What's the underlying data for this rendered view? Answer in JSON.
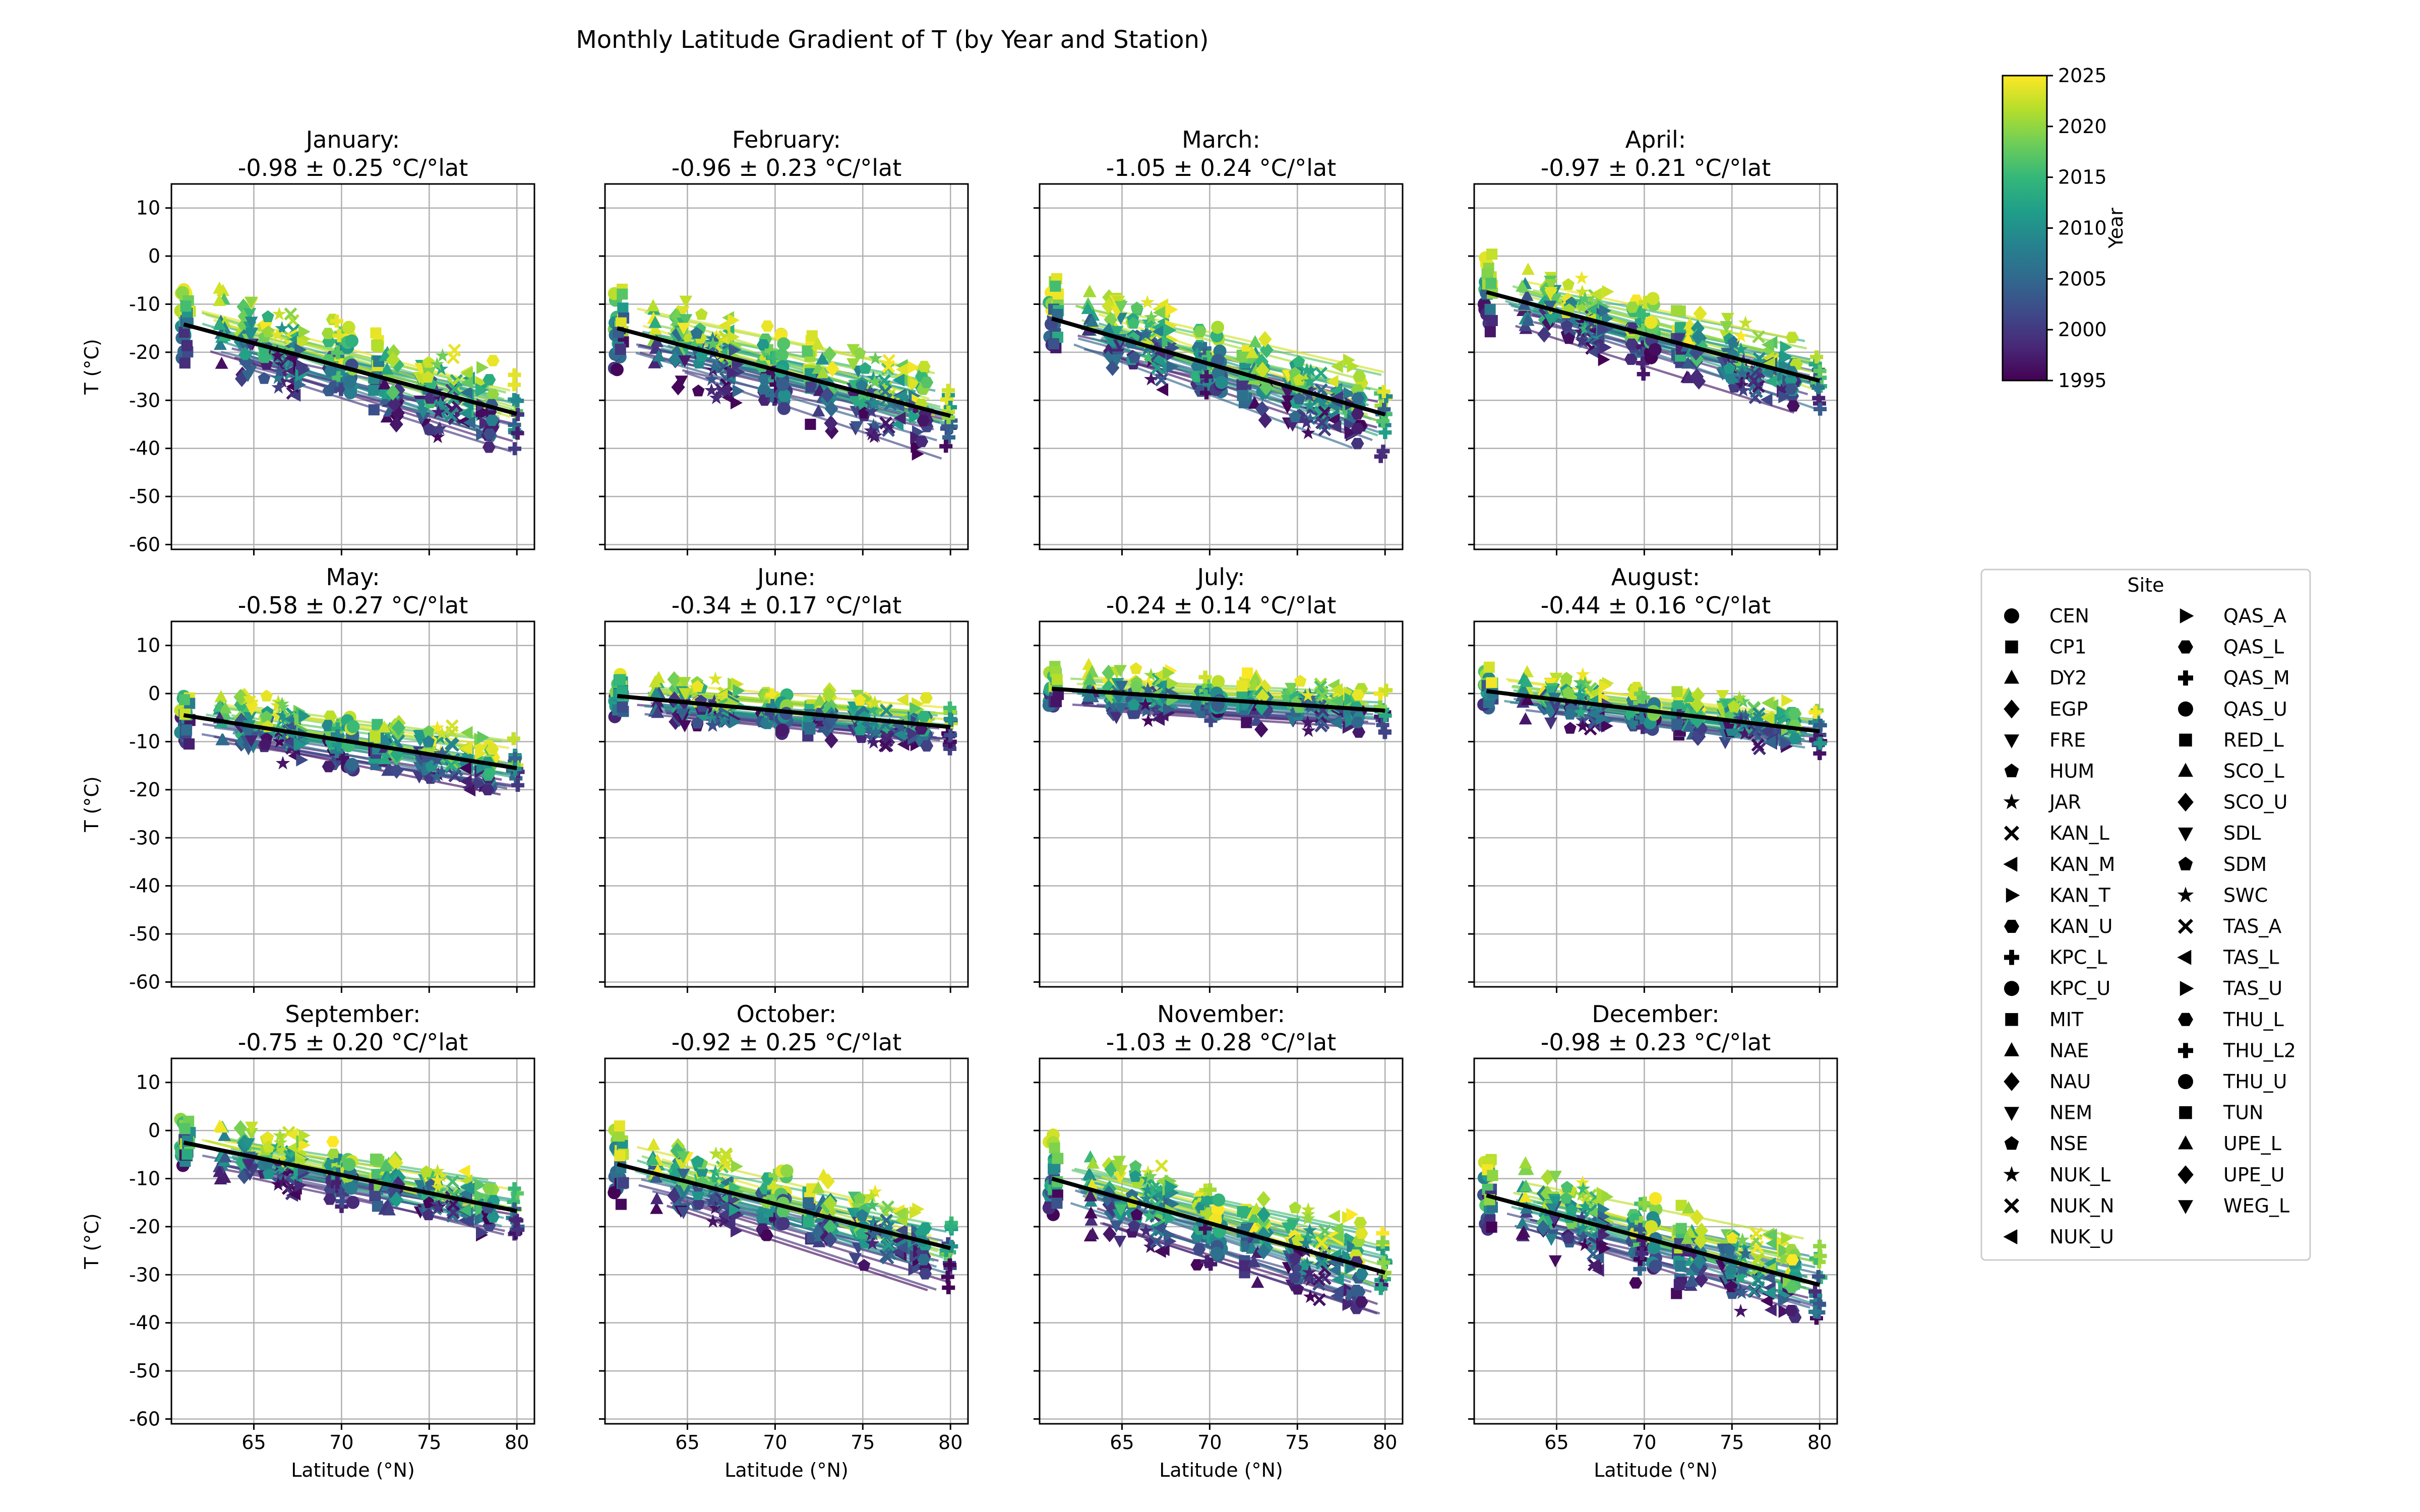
{
  "figure": {
    "title": "Monthly Latitude Gradient of T (by Year and Station)"
  },
  "axes_common": {
    "xlabel": "Latitude (°N)",
    "ylabel": "T (°C)",
    "xlim": [
      60.3,
      81.0
    ],
    "ylim": [
      -61,
      15
    ],
    "xticks": [
      65,
      70,
      75,
      80
    ],
    "yticks": [
      10,
      0,
      -10,
      -20,
      -30,
      -40,
      -50,
      -60
    ],
    "grid": true
  },
  "chart_data": [
    {
      "type": "scatter",
      "month": "January",
      "title": "January:",
      "gradient_label": "-0.98 ± 0.25 °C/°lat",
      "slope": -0.98,
      "slope_err": 0.25,
      "fit_at_61": -14.2,
      "spread": 7
    },
    {
      "type": "scatter",
      "month": "February",
      "title": "February:",
      "gradient_label": "-0.96 ± 0.23 °C/°lat",
      "slope": -0.96,
      "slope_err": 0.23,
      "fit_at_61": -15.0,
      "spread": 7
    },
    {
      "type": "scatter",
      "month": "March",
      "title": "March:",
      "gradient_label": "-1.05 ± 0.24 °C/°lat",
      "slope": -1.05,
      "slope_err": 0.24,
      "fit_at_61": -13.0,
      "spread": 7
    },
    {
      "type": "scatter",
      "month": "April",
      "title": "April:",
      "gradient_label": "-0.97 ± 0.21 °C/°lat",
      "slope": -0.97,
      "slope_err": 0.21,
      "fit_at_61": -7.5,
      "spread": 6
    },
    {
      "type": "scatter",
      "month": "May",
      "title": "May:",
      "gradient_label": "-0.58 ± 0.27 °C/°lat",
      "slope": -0.58,
      "slope_err": 0.27,
      "fit_at_61": -4.5,
      "spread": 5
    },
    {
      "type": "scatter",
      "month": "June",
      "title": "June:",
      "gradient_label": "-0.34 ± 0.17 °C/°lat",
      "slope": -0.34,
      "slope_err": 0.17,
      "fit_at_61": -0.5,
      "spread": 4
    },
    {
      "type": "scatter",
      "month": "July",
      "title": "July:",
      "gradient_label": "-0.24 ± 0.14 °C/°lat",
      "slope": -0.24,
      "slope_err": 0.14,
      "fit_at_61": 1.0,
      "spread": 4
    },
    {
      "type": "scatter",
      "month": "August",
      "title": "August:",
      "gradient_label": "-0.44 ± 0.16 °C/°lat",
      "slope": -0.44,
      "slope_err": 0.16,
      "fit_at_61": 0.5,
      "spread": 4
    },
    {
      "type": "scatter",
      "month": "September",
      "title": "September:",
      "gradient_label": "-0.75 ± 0.20 °C/°lat",
      "slope": -0.75,
      "slope_err": 0.2,
      "fit_at_61": -2.5,
      "spread": 5
    },
    {
      "type": "scatter",
      "month": "October",
      "title": "October:",
      "gradient_label": "-0.92 ± 0.25 °C/°lat",
      "slope": -0.92,
      "slope_err": 0.25,
      "fit_at_61": -7.0,
      "spread": 6
    },
    {
      "type": "scatter",
      "month": "November",
      "title": "November:",
      "gradient_label": "-1.03 ± 0.28 °C/°lat",
      "slope": -1.03,
      "slope_err": 0.28,
      "fit_at_61": -10.0,
      "spread": 7
    },
    {
      "type": "scatter",
      "month": "December",
      "title": "December:",
      "gradient_label": "-0.98 ± 0.23 °C/°lat",
      "slope": -0.98,
      "slope_err": 0.23,
      "fit_at_61": -13.5,
      "spread": 7
    }
  ],
  "colorbar": {
    "label": "Year",
    "range": [
      1995,
      2025
    ],
    "ticks": [
      2025,
      2020,
      2015,
      2010,
      2005,
      2000,
      1995
    ],
    "colormap": "viridis"
  },
  "legend": {
    "title": "Site",
    "placement": "right",
    "entries": [
      {
        "label": "CEN",
        "marker": "circle"
      },
      {
        "label": "CP1",
        "marker": "square"
      },
      {
        "label": "DY2",
        "marker": "triangle-up"
      },
      {
        "label": "EGP",
        "marker": "diamond"
      },
      {
        "label": "FRE",
        "marker": "triangle-down"
      },
      {
        "label": "HUM",
        "marker": "pentagon"
      },
      {
        "label": "JAR",
        "marker": "star"
      },
      {
        "label": "KAN_L",
        "marker": "x"
      },
      {
        "label": "KAN_M",
        "marker": "triangle-left"
      },
      {
        "label": "KAN_T",
        "marker": "triangle-right"
      },
      {
        "label": "KAN_U",
        "marker": "hexagon"
      },
      {
        "label": "KPC_L",
        "marker": "plus"
      },
      {
        "label": "KPC_U",
        "marker": "circle"
      },
      {
        "label": "MIT",
        "marker": "square"
      },
      {
        "label": "NAE",
        "marker": "triangle-up"
      },
      {
        "label": "NAU",
        "marker": "diamond"
      },
      {
        "label": "NEM",
        "marker": "triangle-down"
      },
      {
        "label": "NSE",
        "marker": "pentagon"
      },
      {
        "label": "NUK_L",
        "marker": "star"
      },
      {
        "label": "NUK_N",
        "marker": "x"
      },
      {
        "label": "NUK_U",
        "marker": "triangle-left"
      },
      {
        "label": "QAS_A",
        "marker": "triangle-right"
      },
      {
        "label": "QAS_L",
        "marker": "hexagon"
      },
      {
        "label": "QAS_M",
        "marker": "plus"
      },
      {
        "label": "QAS_U",
        "marker": "circle"
      },
      {
        "label": "RED_L",
        "marker": "square"
      },
      {
        "label": "SCO_L",
        "marker": "triangle-up"
      },
      {
        "label": "SCO_U",
        "marker": "diamond"
      },
      {
        "label": "SDL",
        "marker": "triangle-down"
      },
      {
        "label": "SDM",
        "marker": "pentagon"
      },
      {
        "label": "SWC",
        "marker": "star"
      },
      {
        "label": "TAS_A",
        "marker": "x"
      },
      {
        "label": "TAS_L",
        "marker": "triangle-left"
      },
      {
        "label": "TAS_U",
        "marker": "triangle-right"
      },
      {
        "label": "THU_L",
        "marker": "hexagon"
      },
      {
        "label": "THU_L2",
        "marker": "plus"
      },
      {
        "label": "THU_U",
        "marker": "circle"
      },
      {
        "label": "TUN",
        "marker": "square"
      },
      {
        "label": "UPE_L",
        "marker": "triangle-up"
      },
      {
        "label": "UPE_U",
        "marker": "diamond"
      },
      {
        "label": "WEG_L",
        "marker": "triangle-down"
      }
    ]
  },
  "station_latitudes": [
    61.0,
    61.2,
    63.2,
    64.4,
    64.8,
    65.7,
    66.5,
    67.1,
    67.3,
    67.7,
    69.4,
    69.9,
    70.5,
    72.0,
    72.6,
    73.1,
    74.6,
    75.0,
    75.6,
    76.4,
    77.2,
    78.0,
    78.5,
    79.9
  ]
}
